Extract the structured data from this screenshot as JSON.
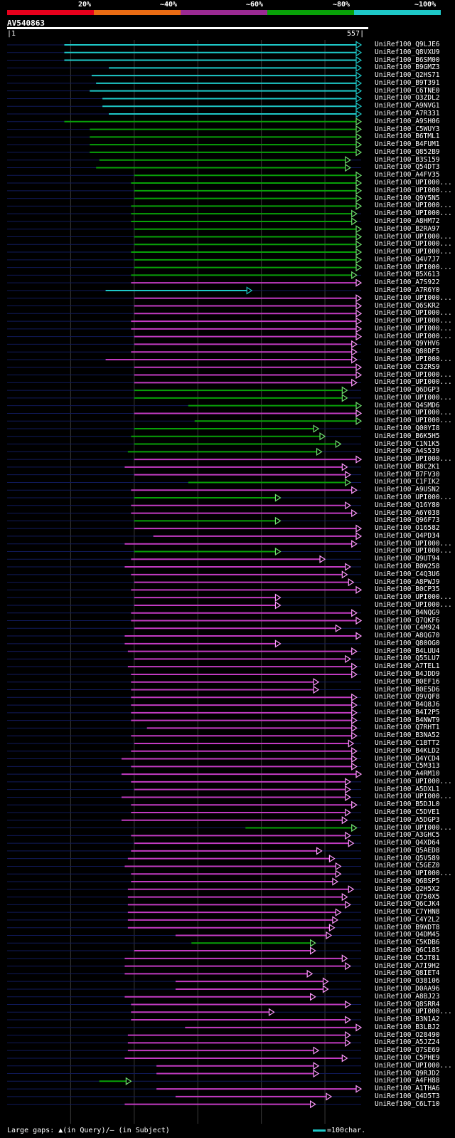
{
  "scale": {
    "labels": [
      "20%",
      "~40%",
      "~60%",
      "~80%",
      "~100%"
    ],
    "colors": [
      "#e8001c",
      "#ea6b13",
      "#9b2a93",
      "#08a108",
      "#1ec8c8"
    ]
  },
  "query": {
    "name": "AV540863",
    "start": "1",
    "end": "557"
  },
  "footer": {
    "text": "Large gaps: ▲(in Query)/– (in Subject)",
    "legend": "=100char."
  },
  "hits": [
    {
      "name": "UniRef100_Q9LJE6",
      "color": "cyan",
      "s": 90,
      "e": 557
    },
    {
      "name": "UniRef100_Q8VXU9",
      "color": "cyan",
      "s": 90,
      "e": 557
    },
    {
      "name": "UniRef100_B6SM00",
      "color": "cyan",
      "s": 90,
      "e": 557
    },
    {
      "name": "UniRef100_B9GMZ3",
      "color": "cyan",
      "s": 160,
      "e": 557
    },
    {
      "name": "UniRef100_Q2HS71",
      "color": "cyan",
      "s": 133,
      "e": 557
    },
    {
      "name": "UniRef100_B9T391",
      "color": "cyan",
      "s": 140,
      "e": 557
    },
    {
      "name": "UniRef100_C6TNE0",
      "color": "cyan",
      "s": 130,
      "e": 557
    },
    {
      "name": "UniRef100_O3ZDL2",
      "color": "cyan",
      "s": 150,
      "e": 557
    },
    {
      "name": "UniRef100_A9NVG1",
      "color": "cyan",
      "s": 150,
      "e": 557
    },
    {
      "name": "UniRef100_A7R331",
      "color": "cyan",
      "s": 160,
      "e": 557
    },
    {
      "name": "UniRef100_A9SH06",
      "color": "green",
      "s": 90,
      "e": 557
    },
    {
      "name": "UniRef100_C5WUY3",
      "color": "green",
      "s": 130,
      "e": 557
    },
    {
      "name": "UniRef100_B6TML1",
      "color": "green",
      "s": 130,
      "e": 557
    },
    {
      "name": "UniRef100_B4FUM1",
      "color": "green",
      "s": 130,
      "e": 557
    },
    {
      "name": "UniRef100_Q852B9",
      "color": "green",
      "s": 130,
      "e": 557
    },
    {
      "name": "UniRef100_B3S159",
      "color": "green",
      "s": 145,
      "e": 540
    },
    {
      "name": "UniRef100_Q54DT3",
      "color": "green",
      "s": 140,
      "e": 540
    },
    {
      "name": "UniRef100_A4FV35",
      "color": "green",
      "s": 200,
      "e": 557
    },
    {
      "name": "UniRef100_UPI000...",
      "color": "green",
      "s": 195,
      "e": 557
    },
    {
      "name": "UniRef100_UPI000...",
      "color": "green",
      "s": 200,
      "e": 557
    },
    {
      "name": "UniRef100_Q9Y5N5",
      "color": "green",
      "s": 200,
      "e": 557
    },
    {
      "name": "UniRef100_UPI000...",
      "color": "green",
      "s": 195,
      "e": 557
    },
    {
      "name": "UniRef100_UPI000...",
      "color": "green",
      "s": 195,
      "e": 550
    },
    {
      "name": "UniRef100_A8HM72",
      "color": "green",
      "s": 195,
      "e": 550
    },
    {
      "name": "UniRef100_B2RA97",
      "color": "green",
      "s": 200,
      "e": 557
    },
    {
      "name": "UniRef100_UPI000...",
      "color": "green",
      "s": 200,
      "e": 557
    },
    {
      "name": "UniRef100_UPI000...",
      "color": "green",
      "s": 200,
      "e": 557
    },
    {
      "name": "UniRef100_UPI000...",
      "color": "green",
      "s": 195,
      "e": 557
    },
    {
      "name": "UniRef100_Q4V7J7",
      "color": "green",
      "s": 200,
      "e": 557
    },
    {
      "name": "UniRef100_UPI000...",
      "color": "green",
      "s": 200,
      "e": 557
    },
    {
      "name": "UniRef100_B5X613",
      "color": "green",
      "s": 195,
      "e": 550
    },
    {
      "name": "UniRef100_A7S922",
      "color": "magenta",
      "s": 195,
      "e": 557
    },
    {
      "name": "UniRef100_A7R6Y0",
      "color": "cyan",
      "s": 155,
      "e": 385
    },
    {
      "name": "UniRef100_UPI000...",
      "color": "magenta",
      "s": 200,
      "e": 557
    },
    {
      "name": "UniRef100_Q6SKR2",
      "color": "magenta",
      "s": 200,
      "e": 557
    },
    {
      "name": "UniRef100_UPI000...",
      "color": "magenta",
      "s": 200,
      "e": 557
    },
    {
      "name": "UniRef100_UPI000...",
      "color": "magenta",
      "s": 195,
      "e": 557
    },
    {
      "name": "UniRef100_UPI000...",
      "color": "magenta",
      "s": 195,
      "e": 557
    },
    {
      "name": "UniRef100_UPI000...",
      "color": "magenta",
      "s": 200,
      "e": 557
    },
    {
      "name": "UniRef100_Q9YHV6",
      "color": "magenta",
      "s": 200,
      "e": 550
    },
    {
      "name": "UniRef100_Q80DF5",
      "color": "magenta",
      "s": 195,
      "e": 550
    },
    {
      "name": "UniRef100_UPI000...",
      "color": "magenta",
      "s": 155,
      "e": 550
    },
    {
      "name": "UniRef100_C3ZRS9",
      "color": "magenta",
      "s": 200,
      "e": 557
    },
    {
      "name": "UniRef100_UPI000...",
      "color": "magenta",
      "s": 200,
      "e": 557
    },
    {
      "name": "UniRef100_UPI000...",
      "color": "magenta",
      "s": 200,
      "e": 550
    },
    {
      "name": "UniRef100_Q6DGP3",
      "color": "green",
      "s": 200,
      "e": 535
    },
    {
      "name": "UniRef100_UPI000...",
      "color": "green",
      "s": 200,
      "e": 535
    },
    {
      "name": "UniRef100_Q4SMD6",
      "color": "green",
      "s": 285,
      "e": 557
    },
    {
      "name": "UniRef100_UPI000...",
      "color": "magenta",
      "s": 200,
      "e": 557
    },
    {
      "name": "UniRef100_UPI000...",
      "color": "green",
      "s": 295,
      "e": 557
    },
    {
      "name": "UniRef100_Q00YI8",
      "color": "green",
      "s": 200,
      "e": 490
    },
    {
      "name": "UniRef100_B6K5H5",
      "color": "green",
      "s": 195,
      "e": 500
    },
    {
      "name": "UniRef100_C1N1K5",
      "color": "green",
      "s": 200,
      "e": 525
    },
    {
      "name": "UniRef100_A4S539",
      "color": "green",
      "s": 190,
      "e": 495
    },
    {
      "name": "UniRef100_UPI000...",
      "color": "magenta",
      "s": 200,
      "e": 557
    },
    {
      "name": "UniRef100_B8C2K1",
      "color": "magenta",
      "s": 185,
      "e": 535
    },
    {
      "name": "UniRef100_B7FV30",
      "color": "magenta",
      "s": 200,
      "e": 540
    },
    {
      "name": "UniRef100_C1FIK2",
      "color": "green",
      "s": 285,
      "e": 540
    },
    {
      "name": "UniRef100_A9USN2",
      "color": "magenta",
      "s": 195,
      "e": 550
    },
    {
      "name": "UniRef100_UPI000...",
      "color": "green",
      "s": 200,
      "e": 430
    },
    {
      "name": "UniRef100_Q16Y80",
      "color": "magenta",
      "s": 195,
      "e": 540
    },
    {
      "name": "UniRef100_A6Y038",
      "color": "magenta",
      "s": 195,
      "e": 550
    },
    {
      "name": "UniRef100_Q96F73",
      "color": "green",
      "s": 200,
      "e": 430
    },
    {
      "name": "UniRef100_O16582",
      "color": "magenta",
      "s": 200,
      "e": 557
    },
    {
      "name": "UniRef100_Q4PD34",
      "color": "magenta",
      "s": 230,
      "e": 557
    },
    {
      "name": "UniRef100_UPI000...",
      "color": "magenta",
      "s": 185,
      "e": 550
    },
    {
      "name": "UniRef100_UPI000...",
      "color": "green",
      "s": 200,
      "e": 430
    },
    {
      "name": "UniRef100_Q9UT94",
      "color": "magenta",
      "s": 195,
      "e": 500
    },
    {
      "name": "UniRef100_B0W258",
      "color": "magenta",
      "s": 185,
      "e": 540
    },
    {
      "name": "UniRef100_C4Q3U6",
      "color": "magenta",
      "s": 195,
      "e": 535
    },
    {
      "name": "UniRef100_A8PWJ9",
      "color": "magenta",
      "s": 200,
      "e": 545
    },
    {
      "name": "UniRef100_B0CP35",
      "color": "magenta",
      "s": 195,
      "e": 557
    },
    {
      "name": "UniRef100_UPI000...",
      "color": "magenta",
      "s": 200,
      "e": 430
    },
    {
      "name": "UniRef100_UPI000...",
      "color": "magenta",
      "s": 200,
      "e": 430
    },
    {
      "name": "UniRef100_B4NQG9",
      "color": "magenta",
      "s": 195,
      "e": 550
    },
    {
      "name": "UniRef100_Q7QKF6",
      "color": "magenta",
      "s": 195,
      "e": 557
    },
    {
      "name": "UniRef100_C4M924",
      "color": "magenta",
      "s": 200,
      "e": 525
    },
    {
      "name": "UniRef100_A8QG70",
      "color": "magenta",
      "s": 185,
      "e": 557
    },
    {
      "name": "UniRef100_Q80OG0",
      "color": "magenta",
      "s": 185,
      "e": 430
    },
    {
      "name": "UniRef100_B4LUU4",
      "color": "magenta",
      "s": 190,
      "e": 550
    },
    {
      "name": "UniRef100_Q55LU7",
      "color": "magenta",
      "s": 200,
      "e": 540
    },
    {
      "name": "UniRef100_A7TEL1",
      "color": "magenta",
      "s": 190,
      "e": 550
    },
    {
      "name": "UniRef100_B4JDD9",
      "color": "magenta",
      "s": 195,
      "e": 550
    },
    {
      "name": "UniRef100_B0EF16",
      "color": "magenta",
      "s": 195,
      "e": 490
    },
    {
      "name": "UniRef100_B0E5D6",
      "color": "magenta",
      "s": 195,
      "e": 490
    },
    {
      "name": "UniRef100_Q9VQF8",
      "color": "magenta",
      "s": 195,
      "e": 550
    },
    {
      "name": "UniRef100_B4Q8J6",
      "color": "magenta",
      "s": 195,
      "e": 550
    },
    {
      "name": "UniRef100_B4I2P5",
      "color": "magenta",
      "s": 195,
      "e": 550
    },
    {
      "name": "UniRef100_B4NWT9",
      "color": "magenta",
      "s": 195,
      "e": 550
    },
    {
      "name": "UniRef100_Q7RHT1",
      "color": "magenta",
      "s": 220,
      "e": 550
    },
    {
      "name": "UniRef100_B3NA52",
      "color": "magenta",
      "s": 195,
      "e": 550
    },
    {
      "name": "UniRef100_C1BTT2",
      "color": "magenta",
      "s": 200,
      "e": 545
    },
    {
      "name": "UniRef100_B4KLD2",
      "color": "magenta",
      "s": 195,
      "e": 550
    },
    {
      "name": "UniRef100_Q4YCD4",
      "color": "magenta",
      "s": 180,
      "e": 550
    },
    {
      "name": "UniRef100_C5M313",
      "color": "magenta",
      "s": 195,
      "e": 550
    },
    {
      "name": "UniRef100_A4RM10",
      "color": "magenta",
      "s": 180,
      "e": 557
    },
    {
      "name": "UniRef100_UPI000...",
      "color": "magenta",
      "s": 195,
      "e": 540
    },
    {
      "name": "UniRef100_A5DXL1",
      "color": "magenta",
      "s": 200,
      "e": 540
    },
    {
      "name": "UniRef100_UPI000...",
      "color": "magenta",
      "s": 180,
      "e": 540
    },
    {
      "name": "UniRef100_B5DJL0",
      "color": "magenta",
      "s": 195,
      "e": 550
    },
    {
      "name": "UniRef100_C5DVE1",
      "color": "magenta",
      "s": 195,
      "e": 540
    },
    {
      "name": "UniRef100_A5DGP3",
      "color": "magenta",
      "s": 180,
      "e": 535
    },
    {
      "name": "UniRef100_UPI000...",
      "color": "green",
      "s": 375,
      "e": 550
    },
    {
      "name": "UniRef100_A3GHC5",
      "color": "magenta",
      "s": 195,
      "e": 540
    },
    {
      "name": "UniRef100_Q4XD64",
      "color": "magenta",
      "s": 200,
      "e": 545
    },
    {
      "name": "UniRef100_Q5AED8",
      "color": "magenta",
      "s": 195,
      "e": 495
    },
    {
      "name": "UniRef100_Q5V589",
      "color": "magenta",
      "s": 190,
      "e": 515
    },
    {
      "name": "UniRef100_C5GEZ0",
      "color": "magenta",
      "s": 185,
      "e": 525
    },
    {
      "name": "UniRef100_UPI000...",
      "color": "magenta",
      "s": 195,
      "e": 525
    },
    {
      "name": "UniRef100_Q6BSP5",
      "color": "magenta",
      "s": 195,
      "e": 520
    },
    {
      "name": "UniRef100_Q2H5X2",
      "color": "magenta",
      "s": 190,
      "e": 545
    },
    {
      "name": "UniRef100_Q750X5",
      "color": "magenta",
      "s": 190,
      "e": 535
    },
    {
      "name": "UniRef100_Q6CJK4",
      "color": "magenta",
      "s": 190,
      "e": 540
    },
    {
      "name": "UniRef100_C7YHN8",
      "color": "magenta",
      "s": 190,
      "e": 525
    },
    {
      "name": "UniRef100_C4Y2L2",
      "color": "magenta",
      "s": 190,
      "e": 520
    },
    {
      "name": "UniRef100_B9WDT8",
      "color": "magenta",
      "s": 190,
      "e": 515
    },
    {
      "name": "UniRef100_Q4DM45",
      "color": "magenta",
      "s": 265,
      "e": 510
    },
    {
      "name": "UniRef100_C5KDB6",
      "color": "green",
      "s": 290,
      "e": 485
    },
    {
      "name": "UniRef100_Q6C185",
      "color": "magenta",
      "s": 200,
      "e": 485
    },
    {
      "name": "UniRef100_C5JT81",
      "color": "magenta",
      "s": 185,
      "e": 535
    },
    {
      "name": "UniRef100_A7I9H2",
      "color": "magenta",
      "s": 185,
      "e": 540
    },
    {
      "name": "UniRef100_Q8IET4",
      "color": "magenta",
      "s": 185,
      "e": 480
    },
    {
      "name": "UniRef100_O38106",
      "color": "magenta",
      "s": 265,
      "e": 505
    },
    {
      "name": "UniRef100_D0AA96",
      "color": "magenta",
      "s": 265,
      "e": 505
    },
    {
      "name": "UniRef100_A8BJ23",
      "color": "magenta",
      "s": 185,
      "e": 485
    },
    {
      "name": "UniRef100_Q8SRR4",
      "color": "magenta",
      "s": 195,
      "e": 540
    },
    {
      "name": "UniRef100_UPI000...",
      "color": "magenta",
      "s": 195,
      "e": 420
    },
    {
      "name": "UniRef100_B3N1A2",
      "color": "magenta",
      "s": 195,
      "e": 540
    },
    {
      "name": "UniRef100_B3LBJ2",
      "color": "magenta",
      "s": 280,
      "e": 557
    },
    {
      "name": "UniRef100_O28490",
      "color": "magenta",
      "s": 190,
      "e": 540
    },
    {
      "name": "UniRef100_A5JZ24",
      "color": "magenta",
      "s": 190,
      "e": 540
    },
    {
      "name": "UniRef100_Q7SE69",
      "color": "magenta",
      "s": 190,
      "e": 490
    },
    {
      "name": "UniRef100_C5PHE9",
      "color": "magenta",
      "s": 185,
      "e": 535
    },
    {
      "name": "UniRef100_UPI000...",
      "color": "magenta",
      "s": 235,
      "e": 490
    },
    {
      "name": "UniRef100_Q9RJD2",
      "color": "magenta",
      "s": 235,
      "e": 490
    },
    {
      "name": "UniRef100_A4FH88",
      "color": "green",
      "s": 145,
      "e": 195
    },
    {
      "name": "UniRef100_A1THA6",
      "color": "magenta",
      "s": 235,
      "e": 557
    },
    {
      "name": "UniRef100_Q4D5T3",
      "color": "magenta",
      "s": 265,
      "e": 510
    },
    {
      "name": "UniRef100_C6LT10",
      "color": "magenta",
      "s": 185,
      "e": 485
    }
  ]
}
